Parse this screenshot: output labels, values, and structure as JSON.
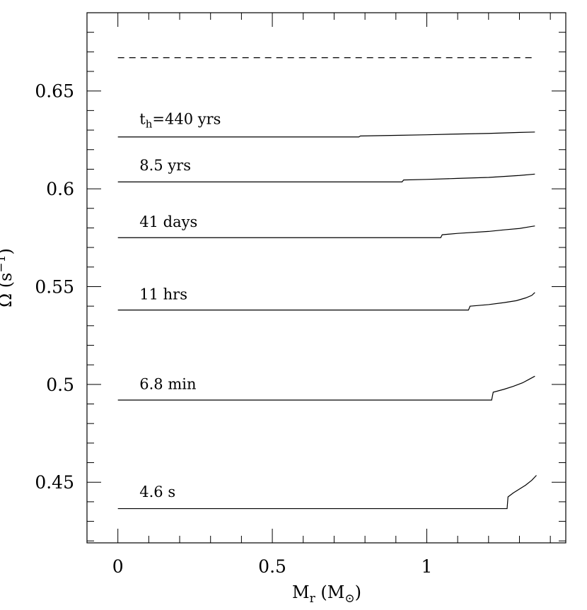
{
  "chart_data": {
    "type": "line",
    "xlabel": {
      "main": "M",
      "main_sub": "r",
      "unit_open": " (M",
      "unit_sub": "⊙",
      "unit_close": ")"
    },
    "ylabel": {
      "main": "Ω (s",
      "sup": "−1",
      "close": ")"
    },
    "xlim": [
      -0.1,
      1.45
    ],
    "ylim": [
      0.419,
      0.69
    ],
    "xticks": [
      0,
      0.5,
      1
    ],
    "xtick_labels": [
      "0",
      "0.5",
      "1"
    ],
    "yticks": [
      0.45,
      0.5,
      0.55,
      0.6,
      0.65
    ],
    "ytick_labels": [
      "0.45",
      "0.5",
      "0.55",
      "0.6",
      "0.65"
    ],
    "reference_line": {
      "style": "dashed",
      "y": 0.667,
      "x": [
        0.0,
        1.35
      ]
    },
    "series": [
      {
        "name": "t",
        "name_sub": "h",
        "name_rest": "=440 yrs",
        "label_pos": [
          0.07,
          0.633
        ],
        "x": [
          0.0,
          0.78,
          0.785,
          0.9,
          1.0,
          1.1,
          1.2,
          1.3,
          1.35
        ],
        "y": [
          0.6265,
          0.6265,
          0.627,
          0.6273,
          0.6276,
          0.628,
          0.6283,
          0.6288,
          0.629
        ]
      },
      {
        "name": "8.5 yrs",
        "label_pos": [
          0.07,
          0.6095
        ],
        "x": [
          0.0,
          0.92,
          0.925,
          1.0,
          1.1,
          1.2,
          1.3,
          1.35
        ],
        "y": [
          0.6035,
          0.6035,
          0.6045,
          0.6048,
          0.6053,
          0.6058,
          0.6068,
          0.6075
        ]
      },
      {
        "name": "41 days",
        "label_pos": [
          0.07,
          0.5805
        ],
        "x": [
          0.0,
          1.045,
          1.05,
          1.1,
          1.2,
          1.25,
          1.3,
          1.33,
          1.35
        ],
        "y": [
          0.575,
          0.575,
          0.5765,
          0.5772,
          0.5782,
          0.579,
          0.5797,
          0.5805,
          0.581
        ]
      },
      {
        "name": "11 hrs",
        "label_pos": [
          0.07,
          0.5435
        ],
        "x": [
          0.0,
          1.135,
          1.14,
          1.2,
          1.25,
          1.29,
          1.32,
          1.34,
          1.35
        ],
        "y": [
          0.538,
          0.538,
          0.54,
          0.5408,
          0.5418,
          0.5428,
          0.5442,
          0.5455,
          0.547
        ]
      },
      {
        "name": "6.8 min",
        "label_pos": [
          0.07,
          0.4975
        ],
        "x": [
          0.0,
          1.21,
          1.215,
          1.25,
          1.28,
          1.31,
          1.33,
          1.35
        ],
        "y": [
          0.492,
          0.492,
          0.496,
          0.4975,
          0.499,
          0.5008,
          0.5025,
          0.5042
        ]
      },
      {
        "name": "4.6 s",
        "label_pos": [
          0.07,
          0.4425
        ],
        "x": [
          0.0,
          1.26,
          1.263,
          1.28,
          1.3,
          1.32,
          1.34,
          1.355
        ],
        "y": [
          0.4365,
          0.4365,
          0.4425,
          0.4445,
          0.4465,
          0.4485,
          0.451,
          0.4535
        ]
      }
    ]
  }
}
